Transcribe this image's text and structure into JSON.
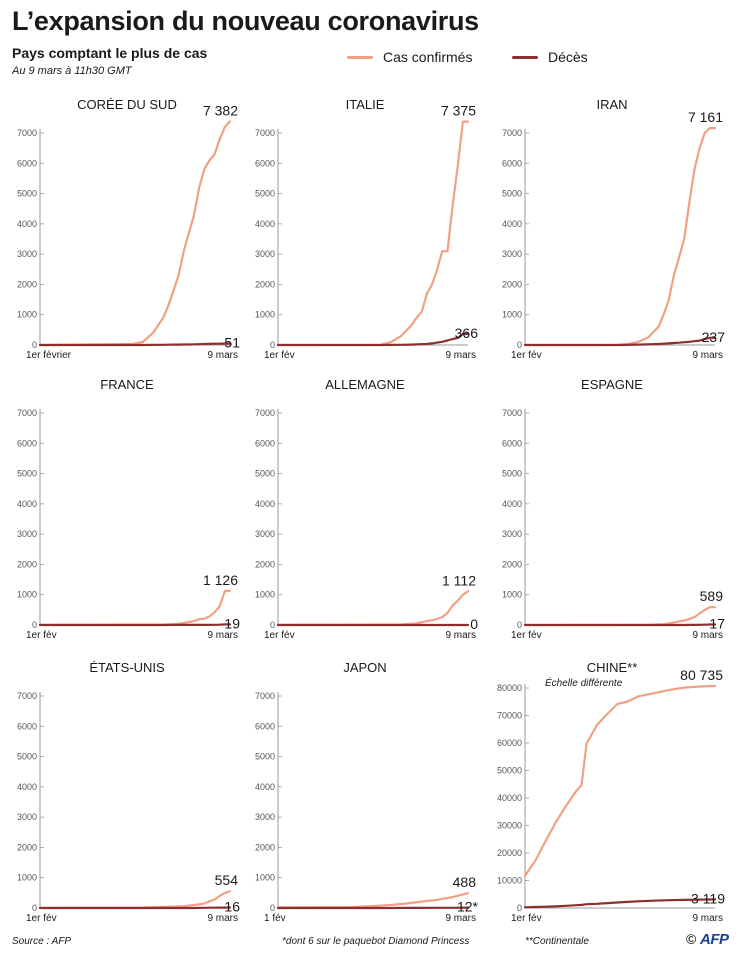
{
  "header": {
    "title": "L’expansion du nouveau coronavirus",
    "subtitle": "Pays comptant le plus de cas",
    "datetime": "Au 9 mars à 11h30 GMT"
  },
  "legend": {
    "confirmed_label": "Cas confirmés",
    "deaths_label": "Décès"
  },
  "colors": {
    "confirmed": "#f0a183",
    "deaths": "#8c2f2f",
    "axis": "#9a9a9a",
    "grid": "#e6e6e6"
  },
  "footer": {
    "source": "Source : AFP",
    "footnote_japan": "*dont 6 sur le paquebot Diamond Princess",
    "footnote_china": "**Continentale",
    "copyright": "©",
    "logo": "AFP"
  },
  "chart_data": [
    {
      "type": "line",
      "title": "CORÉE DU SUD",
      "ylim": [
        0,
        7000
      ],
      "yticks": [
        0,
        1000,
        2000,
        3000,
        4000,
        5000,
        6000,
        7000
      ],
      "x_start_label": "1er février",
      "x_end_label": "9 mars",
      "x": [
        0,
        18,
        20,
        22,
        24,
        25,
        26,
        27,
        28,
        29,
        30,
        31,
        32,
        33,
        34,
        35,
        36,
        37
      ],
      "series": [
        {
          "name": "Cas confirmés",
          "values": [
            0,
            30,
            100,
            400,
            900,
            1300,
            1800,
            2300,
            3100,
            3700,
            4300,
            5200,
            5800,
            6100,
            6300,
            6800,
            7200,
            7382
          ]
        },
        {
          "name": "Décès",
          "values": [
            0,
            0,
            1,
            2,
            7,
            10,
            12,
            14,
            16,
            18,
            22,
            28,
            32,
            35,
            42,
            44,
            48,
            51
          ]
        }
      ],
      "end_labels": {
        "confirmed": "7 382",
        "deaths": "51"
      }
    },
    {
      "type": "line",
      "title": "ITALIE",
      "ylim": [
        0,
        7000
      ],
      "yticks": [
        0,
        1000,
        2000,
        3000,
        4000,
        5000,
        6000,
        7000
      ],
      "x_start_label": "1er fév",
      "x_end_label": "9 mars",
      "x": [
        0,
        20,
        22,
        24,
        26,
        27,
        28,
        29,
        30,
        31,
        32,
        33,
        34,
        35,
        36,
        37
      ],
      "series": [
        {
          "name": "Cas confirmés",
          "values": [
            0,
            5,
            100,
            300,
            650,
            900,
            1100,
            1700,
            2000,
            2500,
            3100,
            3100,
            4600,
            5900,
            7375,
            7375
          ]
        },
        {
          "name": "Décès",
          "values": [
            0,
            0,
            2,
            7,
            14,
            21,
            29,
            34,
            52,
            79,
            107,
            148,
            197,
            233,
            366,
            366
          ]
        }
      ],
      "end_labels": {
        "confirmed": "7 375",
        "deaths": "366"
      }
    },
    {
      "type": "line",
      "title": "IRAN",
      "ylim": [
        0,
        7000
      ],
      "yticks": [
        0,
        1000,
        2000,
        3000,
        4000,
        5000,
        6000,
        7000
      ],
      "x_start_label": "1er fév",
      "x_end_label": "9 mars",
      "x": [
        0,
        18,
        20,
        22,
        24,
        26,
        27,
        28,
        29,
        30,
        31,
        32,
        33,
        34,
        35,
        36,
        37
      ],
      "series": [
        {
          "name": "Cas confirmés",
          "values": [
            0,
            2,
            30,
            100,
            250,
            600,
            1000,
            1500,
            2300,
            2900,
            3500,
            4700,
            5800,
            6500,
            7000,
            7161,
            7161
          ]
        },
        {
          "name": "Décès",
          "values": [
            0,
            1,
            4,
            12,
            19,
            34,
            43,
            54,
            66,
            77,
            92,
            107,
            124,
            145,
            194,
            237,
            237
          ]
        }
      ],
      "end_labels": {
        "confirmed": "7 161",
        "deaths": "237"
      }
    },
    {
      "type": "line",
      "title": "FRANCE",
      "ylim": [
        0,
        7000
      ],
      "yticks": [
        0,
        1000,
        2000,
        3000,
        4000,
        5000,
        6000,
        7000
      ],
      "x_start_label": "1er fév",
      "x_end_label": "9 mars",
      "x": [
        0,
        24,
        27,
        29,
        30,
        31,
        32,
        33,
        34,
        35,
        36,
        37
      ],
      "series": [
        {
          "name": "Cas confirmés",
          "values": [
            6,
            12,
            38,
            100,
            130,
            191,
            212,
            285,
            423,
            613,
            1126,
            1126
          ]
        },
        {
          "name": "Décès",
          "values": [
            0,
            1,
            2,
            2,
            3,
            3,
            4,
            4,
            7,
            9,
            19,
            19
          ]
        }
      ],
      "end_labels": {
        "confirmed": "1 126",
        "deaths": "19"
      }
    },
    {
      "type": "line",
      "title": "ALLEMAGNE",
      "ylim": [
        0,
        7000
      ],
      "yticks": [
        0,
        1000,
        2000,
        3000,
        4000,
        5000,
        6000,
        7000
      ],
      "x_start_label": "1er fév",
      "x_end_label": "9 mars",
      "x": [
        0,
        24,
        27,
        29,
        30,
        31,
        32,
        33,
        34,
        35,
        36,
        37
      ],
      "series": [
        {
          "name": "Cas confirmés",
          "values": [
            8,
            16,
            50,
            130,
            160,
            200,
            262,
            400,
            639,
            800,
            1000,
            1112
          ]
        },
        {
          "name": "Décès",
          "values": [
            0,
            0,
            0,
            0,
            0,
            0,
            0,
            0,
            0,
            0,
            0,
            0
          ]
        }
      ],
      "end_labels": {
        "confirmed": "1 112",
        "deaths": "0"
      }
    },
    {
      "type": "line",
      "title": "ESPAGNE",
      "ylim": [
        0,
        7000
      ],
      "yticks": [
        0,
        1000,
        2000,
        3000,
        4000,
        5000,
        6000,
        7000
      ],
      "x_start_label": "1er fév",
      "x_end_label": "9 mars",
      "x": [
        0,
        24,
        27,
        29,
        30,
        31,
        32,
        33,
        34,
        35,
        36,
        37
      ],
      "series": [
        {
          "name": "Cas confirmés",
          "values": [
            1,
            2,
            25,
            80,
            120,
            150,
            200,
            260,
            380,
            500,
            589,
            589
          ]
        },
        {
          "name": "Décès",
          "values": [
            0,
            0,
            0,
            0,
            1,
            1,
            2,
            3,
            5,
            10,
            17,
            17
          ]
        }
      ],
      "end_labels": {
        "confirmed": "589",
        "deaths": "17"
      }
    },
    {
      "type": "line",
      "title": "ÉTATS-UNIS",
      "ylim": [
        0,
        7000
      ],
      "yticks": [
        0,
        1000,
        2000,
        3000,
        4000,
        5000,
        6000,
        7000
      ],
      "x_start_label": "1er fév",
      "x_end_label": "9 mars",
      "x": [
        0,
        20,
        28,
        30,
        31,
        32,
        33,
        34,
        35,
        36,
        37
      ],
      "series": [
        {
          "name": "Cas confirmés",
          "values": [
            8,
            15,
            60,
            100,
            120,
            150,
            220,
            280,
            400,
            500,
            554
          ]
        },
        {
          "name": "Décès",
          "values": [
            0,
            0,
            0,
            1,
            2,
            6,
            9,
            11,
            12,
            14,
            16
          ]
        }
      ],
      "end_labels": {
        "confirmed": "554",
        "deaths": "16"
      }
    },
    {
      "type": "line",
      "title": "JAPON",
      "ylim": [
        0,
        7000
      ],
      "yticks": [
        0,
        1000,
        2000,
        3000,
        4000,
        5000,
        6000,
        7000
      ],
      "x_start_label": "1 fév",
      "x_end_label": "9 mars",
      "x": [
        0,
        10,
        14,
        18,
        22,
        25,
        28,
        31,
        34,
        37
      ],
      "series": [
        {
          "name": "Cas confirmés",
          "values": [
            20,
            25,
            30,
            60,
            100,
            150,
            210,
            270,
            360,
            488
          ]
        },
        {
          "name": "Décès",
          "values": [
            0,
            0,
            0,
            1,
            1,
            2,
            4,
            6,
            8,
            12
          ]
        }
      ],
      "end_labels": {
        "confirmed": "488",
        "deaths": "12*"
      }
    },
    {
      "type": "line",
      "title": "CHINE**",
      "note": "Échelle différente",
      "ylim": [
        0,
        80000
      ],
      "yticks": [
        0,
        10000,
        20000,
        30000,
        40000,
        50000,
        60000,
        70000,
        80000
      ],
      "x_start_label": "1er fév",
      "x_end_label": "9 mars",
      "x": [
        0,
        2,
        4,
        6,
        8,
        10,
        11,
        12,
        14,
        16,
        18,
        20,
        22,
        25,
        28,
        31,
        34,
        37
      ],
      "series": [
        {
          "name": "Cas confirmés",
          "values": [
            11791,
            17205,
            24324,
            31161,
            37198,
            42638,
            44653,
            59804,
            66492,
            70548,
            74185,
            75077,
            76936,
            78064,
            79251,
            80151,
            80552,
            80735
          ]
        },
        {
          "name": "Décès",
          "values": [
            259,
            361,
            490,
            636,
            811,
            1016,
            1113,
            1367,
            1523,
            1770,
            2004,
            2236,
            2442,
            2663,
            2835,
            2943,
            3042,
            3119
          ]
        }
      ],
      "end_labels": {
        "confirmed": "80 735",
        "deaths": "3 119"
      }
    }
  ]
}
